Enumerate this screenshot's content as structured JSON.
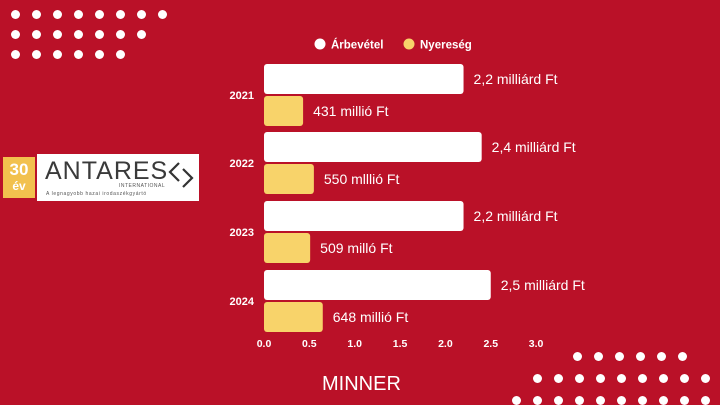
{
  "badge": {
    "number": "30",
    "unit": "év"
  },
  "logo": {
    "name": "ANTARES",
    "subtitle": "INTERNATIONAL",
    "tagline": "A legnagyobb hazai irodaszékgyártó",
    "mark_icon": "chevron-arrows-icon"
  },
  "brand": "MINNER",
  "colors": {
    "background": "#BA1128",
    "revenue": "#FFFFFF",
    "profit": "#F8D36A"
  },
  "chart_data": {
    "type": "bar",
    "orientation": "horizontal",
    "categories": [
      "2021",
      "2022",
      "2023",
      "2024"
    ],
    "series": [
      {
        "name": "Árbevétel",
        "values": [
          2.2,
          2.4,
          2.2,
          2.5
        ],
        "labels": [
          "2,2 milliárd Ft",
          "2,4 milliárd Ft",
          "2,2 milliárd Ft",
          "2,5 milliárd Ft"
        ],
        "color": "#FFFFFF"
      },
      {
        "name": "Nyereség",
        "values": [
          0.431,
          0.55,
          0.509,
          0.648
        ],
        "labels": [
          "431 millió Ft",
          "550 mlllió Ft",
          "509 milló Ft",
          "648 millió Ft"
        ],
        "color": "#F8D36A"
      }
    ],
    "x_ticks": [
      "0.0",
      "0.5",
      "1.0",
      "1.5",
      "2.0",
      "2.5",
      "3.0"
    ],
    "xlim": [
      0,
      3.0
    ],
    "legend_position": "top",
    "grid": false
  }
}
